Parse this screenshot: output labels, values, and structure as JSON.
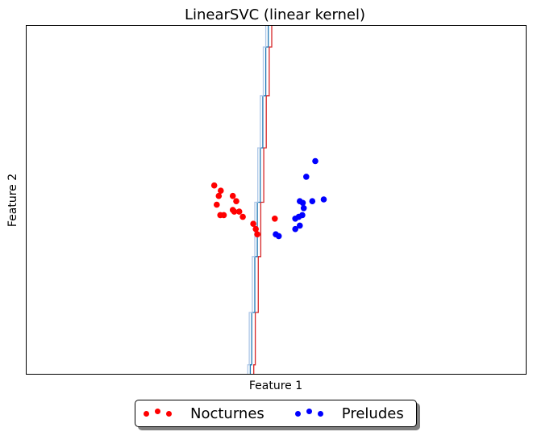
{
  "chart_data": {
    "type": "scatter",
    "title": "LinearSVC (linear kernel)",
    "xlabel": "Feature 1",
    "ylabel": "Feature 2",
    "ticks": "none",
    "grid": false,
    "legend_placement": "bottom-center",
    "xlim": [
      0,
      100
    ],
    "ylim": [
      0,
      100
    ],
    "series": [
      {
        "name": "Nocturnes",
        "color": "#ff0000",
        "x": [
          37.7,
          39.0,
          38.6,
          41.4,
          42.1,
          41.4,
          38.2,
          38.9,
          39.6,
          41.7,
          42.7,
          43.4,
          45.5,
          46.0,
          46.3,
          49.8
        ],
        "y": [
          54.0,
          52.5,
          51.0,
          51.0,
          49.5,
          47.0,
          48.5,
          45.5,
          45.5,
          46.5,
          46.5,
          45.0,
          43.0,
          41.5,
          40.0,
          44.5
        ]
      },
      {
        "name": "Preludes",
        "color": "#0000ff",
        "x": [
          57.9,
          56.1,
          54.8,
          55.4,
          57.3,
          55.6,
          59.6,
          55.3,
          53.9,
          54.6,
          54.8,
          53.9,
          50.0,
          50.6
        ],
        "y": [
          61.0,
          56.5,
          49.5,
          49.0,
          49.5,
          47.5,
          50.0,
          45.5,
          44.5,
          45.0,
          42.5,
          41.5,
          40.0,
          39.5
        ]
      }
    ],
    "boundaries": [
      {
        "color": "#d62728",
        "points": [
          [
            49.2,
            100
          ],
          [
            49.2,
            93.7
          ],
          [
            48.7,
            93.7
          ],
          [
            48.7,
            79.7
          ],
          [
            48.1,
            79.7
          ],
          [
            48.1,
            64.8
          ],
          [
            47.6,
            64.8
          ],
          [
            47.6,
            49.2
          ],
          [
            47.0,
            49.2
          ],
          [
            47.0,
            33.6
          ],
          [
            46.5,
            33.6
          ],
          [
            46.5,
            17.6
          ],
          [
            45.9,
            17.6
          ],
          [
            45.9,
            2.6
          ],
          [
            45.6,
            2.6
          ],
          [
            45.6,
            0
          ]
        ]
      },
      {
        "color": "#1f77b4",
        "points": [
          [
            48.5,
            100
          ],
          [
            48.5,
            93.7
          ],
          [
            48.0,
            93.7
          ],
          [
            48.0,
            79.7
          ],
          [
            47.4,
            79.7
          ],
          [
            47.4,
            64.8
          ],
          [
            46.9,
            64.8
          ],
          [
            46.9,
            49.2
          ],
          [
            46.3,
            49.2
          ],
          [
            46.3,
            33.6
          ],
          [
            45.8,
            33.6
          ],
          [
            45.8,
            17.6
          ],
          [
            45.2,
            17.6
          ],
          [
            45.2,
            2.6
          ],
          [
            44.9,
            2.6
          ],
          [
            44.9,
            0
          ]
        ]
      },
      {
        "color": "#aec7e8",
        "points": [
          [
            48.0,
            100
          ],
          [
            48.0,
            93.7
          ],
          [
            47.5,
            93.7
          ],
          [
            47.5,
            79.7
          ],
          [
            46.9,
            79.7
          ],
          [
            46.9,
            64.8
          ],
          [
            46.4,
            64.8
          ],
          [
            46.4,
            49.2
          ],
          [
            45.8,
            49.2
          ],
          [
            45.8,
            33.6
          ],
          [
            45.3,
            33.6
          ],
          [
            45.3,
            17.6
          ],
          [
            44.7,
            17.6
          ],
          [
            44.7,
            2.6
          ],
          [
            44.4,
            2.6
          ],
          [
            44.4,
            0
          ]
        ]
      }
    ]
  }
}
